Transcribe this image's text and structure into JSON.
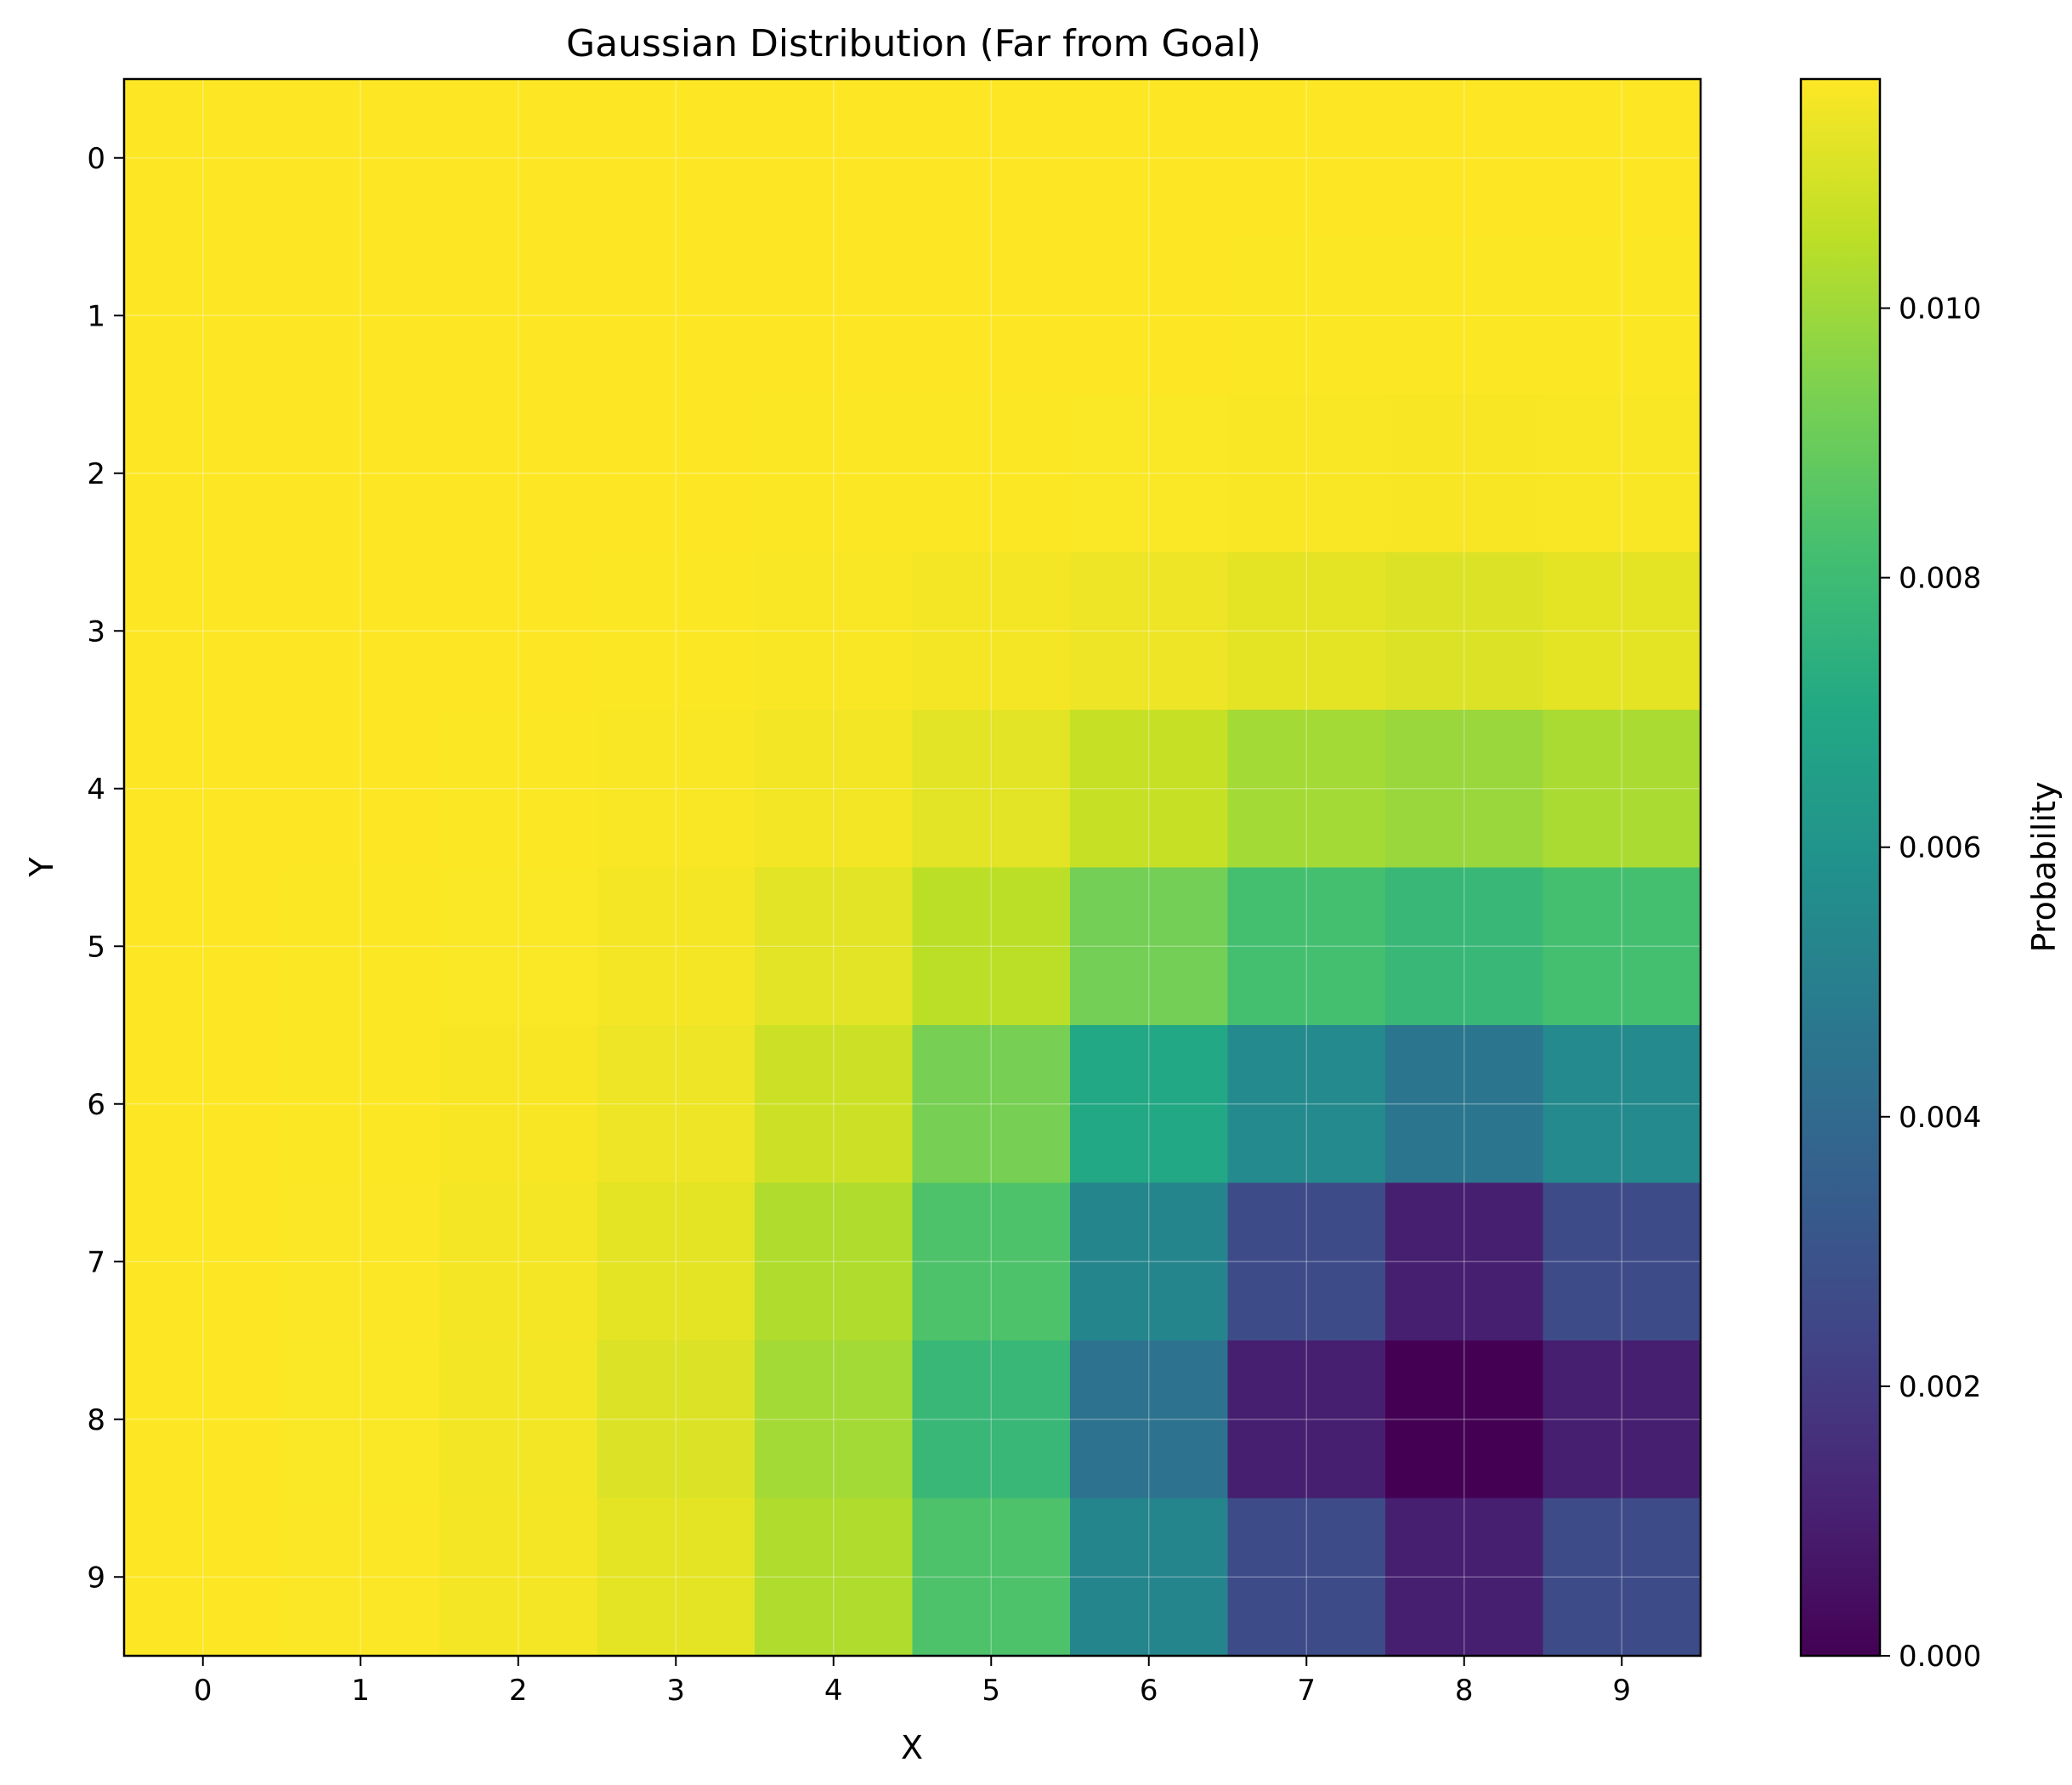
{
  "chart_data": {
    "type": "heatmap",
    "title": "Gaussian Distribution (Far from Goal)",
    "xlabel": "X",
    "ylabel": "Y",
    "x_ticks": [
      "0",
      "1",
      "2",
      "3",
      "4",
      "5",
      "6",
      "7",
      "8",
      "9"
    ],
    "y_ticks": [
      "0",
      "1",
      "2",
      "3",
      "4",
      "5",
      "6",
      "7",
      "8",
      "9"
    ],
    "y_axis_inverted": true,
    "grid": true,
    "colormap": "viridis",
    "colorbar": {
      "label": "Probability",
      "range": [
        0.0,
        0.0117
      ],
      "ticks": [
        "0.000",
        "0.002",
        "0.004",
        "0.006",
        "0.008",
        "0.010"
      ],
      "tick_values": [
        0.0,
        0.002,
        0.004,
        0.006,
        0.008,
        0.01
      ]
    },
    "values": [
      [
        0.0117,
        0.0117,
        0.0117,
        0.0117,
        0.0117,
        0.0117,
        0.0117,
        0.0117,
        0.0117,
        0.0117
      ],
      [
        0.0117,
        0.0117,
        0.0117,
        0.0117,
        0.0117,
        0.0117,
        0.0117,
        0.01169,
        0.01169,
        0.01169
      ],
      [
        0.0117,
        0.0117,
        0.0117,
        0.0117,
        0.01169,
        0.01168,
        0.01165,
        0.01162,
        0.0116,
        0.01162
      ],
      [
        0.0117,
        0.0117,
        0.0117,
        0.01168,
        0.01163,
        0.01155,
        0.0114,
        0.01125,
        0.0111,
        0.01125
      ],
      [
        0.0117,
        0.0117,
        0.01168,
        0.01163,
        0.0115,
        0.0112,
        0.0107,
        0.0101,
        0.0099,
        0.0102
      ],
      [
        0.0117,
        0.01169,
        0.01165,
        0.01155,
        0.0112,
        0.0105,
        0.0092,
        0.0082,
        0.0078,
        0.0082
      ],
      [
        0.0117,
        0.01168,
        0.0116,
        0.0114,
        0.0108,
        0.0093,
        0.007,
        0.0055,
        0.0046,
        0.0055
      ],
      [
        0.0117,
        0.01166,
        0.01155,
        0.01125,
        0.0103,
        0.0084,
        0.0053,
        0.0027,
        0.001,
        0.0027
      ],
      [
        0.0117,
        0.01165,
        0.0115,
        0.0111,
        0.0101,
        0.0078,
        0.0044,
        0.001,
        0.0,
        0.001
      ],
      [
        0.0117,
        0.01166,
        0.01155,
        0.01125,
        0.0103,
        0.0084,
        0.0053,
        0.0027,
        0.001,
        0.0027
      ]
    ]
  }
}
